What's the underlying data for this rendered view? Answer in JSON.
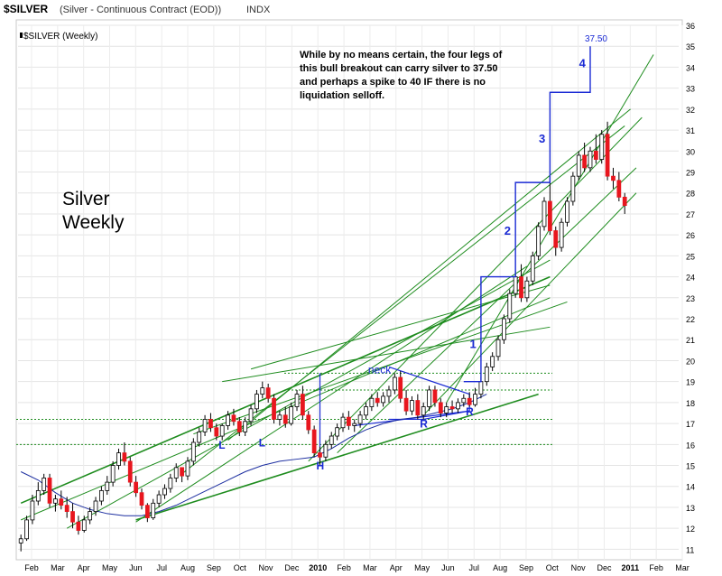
{
  "header": {
    "symbol": "$SILVER",
    "description": "(Silver - Continuous Contract (EOD))",
    "exchange": "INDX",
    "legend": "$SILVER (Weekly)"
  },
  "annotations": {
    "note": "While by no means certain, the four legs of this bull breakout can carry silver to 37.50 and perhaps a spike to 40 IF there is no liquidation selloff.",
    "title_line1": "Silver",
    "title_line2": "Weekly",
    "target": "37.50",
    "leg_labels": [
      "1",
      "2",
      "3",
      "4"
    ],
    "pattern_labels": [
      "L",
      "L",
      "H",
      "R",
      "R",
      "neck"
    ]
  },
  "colors": {
    "up": "#ffffff",
    "down": "#e8161e",
    "wick": "#000000",
    "trend": "#1e8c1e",
    "ma": "#1c2ea0",
    "legs": "#1a2ad4"
  },
  "chart_data": {
    "type": "candlestick",
    "interval": "weekly",
    "y_axis": {
      "min": 10.5,
      "max": 36,
      "ticks": [
        11,
        12,
        13,
        14,
        15,
        16,
        17,
        18,
        19,
        20,
        21,
        22,
        23,
        24,
        25,
        26,
        27,
        28,
        29,
        30,
        31,
        32,
        33,
        34,
        35,
        36
      ]
    },
    "x_axis": {
      "labels": [
        "Feb",
        "Mar",
        "Apr",
        "May",
        "Jun",
        "Jul",
        "Aug",
        "Sep",
        "Oct",
        "Nov",
        "Dec",
        "2010",
        "Feb",
        "Mar",
        "Apr",
        "May",
        "Jun",
        "Jul",
        "Aug",
        "Sep",
        "Oct",
        "Nov",
        "Dec",
        "2011",
        "Feb",
        "Mar"
      ],
      "bold_labels": [
        "2010",
        "2011"
      ]
    },
    "weeks": 113,
    "candles": [
      [
        11.3,
        11.7,
        10.9,
        11.5
      ],
      [
        11.5,
        12.6,
        11.4,
        12.4
      ],
      [
        12.4,
        13.6,
        12.2,
        13.3
      ],
      [
        13.3,
        14.2,
        13.1,
        13.8
      ],
      [
        13.8,
        14.6,
        13.6,
        14.4
      ],
      [
        14.4,
        14.6,
        13.0,
        13.2
      ],
      [
        13.2,
        13.6,
        12.8,
        13.4
      ],
      [
        13.4,
        13.8,
        12.9,
        13.1
      ],
      [
        13.1,
        13.5,
        12.5,
        12.8
      ],
      [
        12.8,
        13.2,
        12.0,
        12.3
      ],
      [
        12.3,
        12.6,
        11.7,
        11.9
      ],
      [
        11.9,
        12.6,
        11.8,
        12.4
      ],
      [
        12.4,
        13.0,
        12.2,
        12.8
      ],
      [
        12.8,
        13.5,
        12.6,
        13.3
      ],
      [
        13.3,
        14.0,
        13.1,
        13.8
      ],
      [
        13.8,
        14.5,
        13.6,
        14.2
      ],
      [
        14.2,
        15.2,
        14.0,
        15.0
      ],
      [
        15.0,
        15.8,
        14.8,
        15.6
      ],
      [
        15.6,
        16.1,
        15.0,
        15.2
      ],
      [
        15.2,
        15.4,
        14.0,
        14.2
      ],
      [
        14.2,
        14.5,
        13.5,
        13.7
      ],
      [
        13.7,
        13.9,
        12.9,
        13.1
      ],
      [
        13.1,
        13.2,
        12.3,
        12.5
      ],
      [
        12.5,
        13.4,
        12.4,
        13.2
      ],
      [
        13.2,
        13.8,
        13.0,
        13.6
      ],
      [
        13.6,
        14.1,
        13.4,
        13.9
      ],
      [
        13.9,
        14.6,
        13.7,
        14.4
      ],
      [
        14.4,
        15.1,
        14.2,
        14.9
      ],
      [
        14.9,
        14.9,
        14.2,
        14.5
      ],
      [
        14.5,
        15.4,
        14.3,
        15.2
      ],
      [
        15.2,
        16.3,
        15.0,
        16.1
      ],
      [
        16.1,
        16.8,
        15.9,
        16.6
      ],
      [
        16.6,
        17.4,
        16.4,
        17.2
      ],
      [
        17.2,
        17.5,
        16.6,
        16.8
      ],
      [
        16.8,
        17.0,
        16.2,
        16.4
      ],
      [
        16.4,
        17.0,
        16.2,
        16.9
      ],
      [
        16.9,
        17.6,
        16.7,
        17.4
      ],
      [
        17.4,
        17.7,
        16.9,
        17.1
      ],
      [
        17.1,
        17.3,
        16.4,
        16.6
      ],
      [
        16.6,
        17.3,
        16.4,
        17.1
      ],
      [
        17.1,
        17.9,
        16.9,
        17.7
      ],
      [
        17.7,
        18.6,
        17.5,
        18.4
      ],
      [
        18.4,
        19.0,
        18.2,
        18.7
      ],
      [
        18.7,
        18.9,
        18.0,
        18.2
      ],
      [
        18.2,
        18.4,
        17.0,
        17.2
      ],
      [
        17.2,
        17.6,
        16.9,
        17.4
      ],
      [
        17.4,
        17.8,
        16.8,
        17.0
      ],
      [
        17.0,
        18.0,
        16.9,
        17.8
      ],
      [
        17.8,
        18.6,
        17.6,
        18.4
      ],
      [
        18.4,
        18.8,
        17.2,
        17.4
      ],
      [
        17.4,
        17.6,
        16.5,
        16.7
      ],
      [
        16.7,
        16.9,
        15.4,
        15.6
      ],
      [
        15.6,
        15.9,
        15.0,
        15.4
      ],
      [
        15.4,
        16.2,
        15.2,
        16.0
      ],
      [
        16.0,
        16.6,
        15.8,
        16.4
      ],
      [
        16.4,
        17.0,
        16.2,
        16.8
      ],
      [
        16.8,
        17.5,
        16.6,
        17.3
      ],
      [
        17.3,
        17.6,
        16.7,
        16.9
      ],
      [
        16.9,
        17.2,
        16.6,
        17.0
      ],
      [
        17.0,
        17.6,
        16.8,
        17.4
      ],
      [
        17.4,
        18.0,
        17.2,
        17.8
      ],
      [
        17.8,
        18.4,
        17.6,
        18.2
      ],
      [
        18.2,
        18.5,
        17.8,
        18.0
      ],
      [
        18.0,
        18.5,
        17.8,
        18.3
      ],
      [
        18.3,
        18.8,
        18.0,
        18.6
      ],
      [
        18.6,
        19.4,
        18.4,
        19.2
      ],
      [
        19.2,
        19.5,
        18.0,
        18.2
      ],
      [
        18.2,
        18.6,
        17.4,
        17.6
      ],
      [
        17.6,
        18.3,
        17.4,
        18.1
      ],
      [
        18.1,
        18.4,
        17.2,
        17.4
      ],
      [
        17.4,
        18.0,
        17.2,
        17.8
      ],
      [
        17.8,
        18.8,
        17.6,
        18.6
      ],
      [
        18.6,
        18.8,
        17.8,
        18.0
      ],
      [
        18.0,
        18.2,
        17.3,
        17.5
      ],
      [
        17.5,
        18.0,
        17.3,
        17.8
      ],
      [
        17.8,
        18.1,
        17.5,
        17.7
      ],
      [
        17.7,
        18.2,
        17.5,
        18.0
      ],
      [
        18.0,
        18.4,
        17.8,
        18.2
      ],
      [
        18.2,
        18.5,
        17.8,
        17.9
      ],
      [
        17.9,
        18.7,
        17.8,
        18.4
      ],
      [
        18.4,
        19.2,
        18.2,
        19.0
      ],
      [
        19.0,
        19.9,
        18.8,
        19.7
      ],
      [
        19.7,
        20.4,
        19.5,
        20.2
      ],
      [
        20.2,
        21.2,
        20.0,
        21.0
      ],
      [
        21.0,
        22.2,
        20.8,
        22.0
      ],
      [
        22.0,
        23.4,
        21.8,
        23.2
      ],
      [
        23.2,
        24.3,
        23.0,
        24.0
      ],
      [
        24.0,
        24.6,
        22.8,
        23.0
      ],
      [
        23.0,
        24.0,
        22.8,
        23.8
      ],
      [
        23.8,
        25.2,
        23.6,
        25.0
      ],
      [
        25.0,
        26.6,
        24.8,
        26.4
      ],
      [
        26.4,
        27.8,
        26.2,
        27.6
      ],
      [
        27.6,
        28.8,
        26.0,
        26.2
      ],
      [
        26.2,
        26.4,
        25.0,
        25.4
      ],
      [
        25.4,
        26.8,
        25.2,
        26.6
      ],
      [
        26.6,
        27.8,
        26.4,
        27.6
      ],
      [
        27.6,
        29.0,
        27.4,
        28.8
      ],
      [
        28.8,
        30.0,
        28.6,
        29.8
      ],
      [
        29.8,
        30.4,
        29.0,
        29.2
      ],
      [
        29.2,
        30.2,
        29.0,
        30.0
      ],
      [
        30.0,
        30.8,
        29.4,
        29.6
      ],
      [
        29.6,
        31.0,
        29.4,
        30.8
      ],
      [
        30.8,
        31.4,
        28.6,
        28.8
      ],
      [
        28.8,
        29.2,
        28.2,
        28.6
      ],
      [
        28.6,
        29.0,
        27.6,
        27.8
      ],
      [
        27.8,
        28.0,
        27.0,
        27.4
      ]
    ],
    "moving_average": [
      [
        0,
        14.7
      ],
      [
        3,
        14.3
      ],
      [
        6,
        13.7
      ],
      [
        9,
        13.2
      ],
      [
        12,
        12.9
      ],
      [
        15,
        12.7
      ],
      [
        18,
        12.6
      ],
      [
        21,
        12.6
      ],
      [
        24,
        12.8
      ],
      [
        27,
        13.1
      ],
      [
        30,
        13.5
      ],
      [
        33,
        13.9
      ],
      [
        36,
        14.3
      ],
      [
        39,
        14.7
      ],
      [
        42,
        15.0
      ],
      [
        45,
        15.2
      ],
      [
        48,
        15.3
      ],
      [
        51,
        15.4
      ],
      [
        54,
        15.8
      ],
      [
        57,
        16.3
      ],
      [
        60,
        16.7
      ],
      [
        63,
        17.0
      ],
      [
        66,
        17.2
      ],
      [
        69,
        17.3
      ],
      [
        72,
        17.5
      ],
      [
        75,
        17.7
      ],
      [
        78,
        18.0
      ],
      [
        81,
        18.4
      ]
    ],
    "target_price": 37.5
  }
}
